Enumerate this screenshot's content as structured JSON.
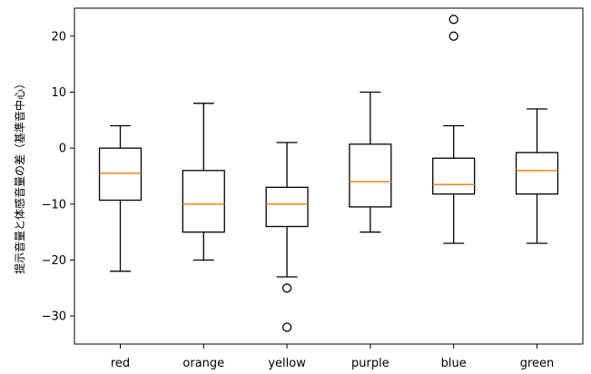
{
  "chart_data": {
    "type": "box",
    "title": "",
    "xlabel": "",
    "ylabel": "提示音量と体感音量の差（基準音中心）",
    "ylim": [
      -35,
      25
    ],
    "yticks": [
      20,
      10,
      0,
      -10,
      -20,
      -30
    ],
    "ytick_labels": [
      "20",
      "10",
      "0",
      "−10",
      "−20",
      "−30"
    ],
    "grid": false,
    "box_color": "#000000",
    "median_color": "#ff7f0e",
    "categories": [
      "red",
      "orange",
      "yellow",
      "purple",
      "blue",
      "green"
    ],
    "boxes": [
      {
        "label": "red",
        "whisker_low": -22,
        "q1": -9.3,
        "median": -4.5,
        "q3": 0,
        "whisker_high": 4,
        "outliers": []
      },
      {
        "label": "orange",
        "whisker_low": -20,
        "q1": -15,
        "median": -10,
        "q3": -4,
        "whisker_high": 8,
        "outliers": []
      },
      {
        "label": "yellow",
        "whisker_low": -23,
        "q1": -14,
        "median": -10,
        "q3": -7,
        "whisker_high": 1,
        "outliers": [
          -25,
          -32
        ]
      },
      {
        "label": "purple",
        "whisker_low": -15,
        "q1": -10.5,
        "median": -6,
        "q3": 0.7,
        "whisker_high": 10,
        "outliers": []
      },
      {
        "label": "blue",
        "whisker_low": -17,
        "q1": -8.2,
        "median": -6.5,
        "q3": -1.8,
        "whisker_high": 4,
        "outliers": [
          20,
          23
        ]
      },
      {
        "label": "green",
        "whisker_low": -17,
        "q1": -8.2,
        "median": -4,
        "q3": -0.8,
        "whisker_high": 7,
        "outliers": []
      }
    ]
  }
}
